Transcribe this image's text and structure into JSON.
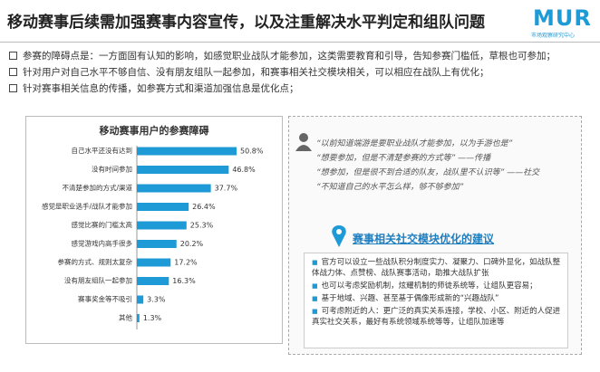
{
  "header": {
    "title": "移动赛事后续需加强赛事内容宣传，以及注重解决水平判定和组队问题",
    "logo": "MUR",
    "logo_subtitle": "市场观察研究中心"
  },
  "bullets": [
    "参赛的障碍点是：一方面固有认知的影响，如感觉职业战队才能参加，这类需要教育和引导，告知参赛门槛低，草根也可参加；",
    "针对用户对自己水平不够自信、没有朋友组队一起参加，和赛事相关社交模块相关，可以相应在战队上有优化；",
    "针对赛事相关信息的传播，如参赛方式和渠道加强信息是优化点；"
  ],
  "chart_data": {
    "type": "bar",
    "orientation": "horizontal",
    "title": "移动赛事用户的参赛障碍",
    "categories": [
      "自己水平还没有达到",
      "没有时间参加",
      "不清楚参加的方式/渠道",
      "感觉是职业选手/战队才能参加",
      "感觉比赛的门槛太高",
      "感觉游戏内高手很多",
      "参赛的方式、规则太复杂",
      "没有朋友组队一起参加",
      "赛事奖金等不吸引",
      "其他"
    ],
    "values": [
      50.8,
      46.8,
      37.7,
      26.4,
      25.3,
      20.2,
      17.2,
      16.3,
      3.3,
      1.3
    ],
    "value_labels": [
      "50.8%",
      "46.8%",
      "37.7%",
      "26.4%",
      "25.3%",
      "20.2%",
      "17.2%",
      "16.3%",
      "3.3%",
      "1.3%"
    ],
    "color": "#1e9ad6"
  },
  "panel": {
    "quotes": [
      "“以前知道端游是要职业战队才能参加，以为手游也是”",
      "“想要参加，但是不清楚参赛的方式等” ——传播",
      "“想参加，但是很不到合适的队友，战队里不认识等” ——社交",
      "“不知道自己的水平怎么样，够不够参加”"
    ],
    "section_title": "赛事相关社交模块优化的建议",
    "suggestions": [
      "官方可以设立一些战队积分制度实力、凝聚力、口碑外显化，如战队整体战力体、点赞榜、战队赛事活动，助推大战队扩张",
      "也可以考虑奖励机制，炫耀机制的师徒系统等，让组队更容易；",
      "基于地域、兴趣、甚至基于偶像形成新的“兴趣战队”",
      "可考虑附近的人：更广泛的真实关系连接，学校、小区、附近的人促进真实社交关系，最好有系统领域系统等等，让组队加速等"
    ]
  }
}
